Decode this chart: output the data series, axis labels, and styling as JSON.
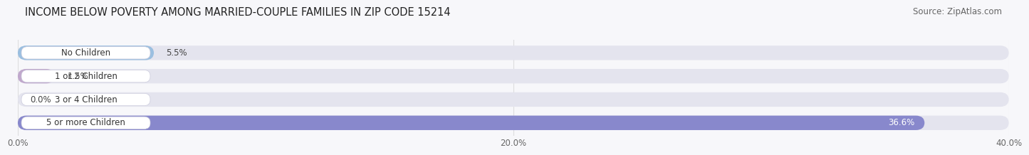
{
  "title": "INCOME BELOW POVERTY AMONG MARRIED-COUPLE FAMILIES IN ZIP CODE 15214",
  "source": "Source: ZipAtlas.com",
  "categories": [
    "No Children",
    "1 or 2 Children",
    "3 or 4 Children",
    "5 or more Children"
  ],
  "values": [
    5.5,
    1.5,
    0.0,
    36.6
  ],
  "bar_colors": [
    "#9bbfe0",
    "#c0a8cc",
    "#7ecfc8",
    "#8888cc"
  ],
  "bar_bg_color": "#e4e4ee",
  "xlim": [
    0,
    40
  ],
  "xtick_labels": [
    "0.0%",
    "20.0%",
    "40.0%"
  ],
  "label_fontsize": 8.5,
  "title_fontsize": 10.5,
  "source_fontsize": 8.5,
  "background_color": "#f7f7fa",
  "bar_height": 0.62,
  "label_color": "#333333",
  "value_label_color": "#444444",
  "value_inside_color": "#ffffff",
  "grid_color": "#dddddf",
  "label_box_color": "#ffffff",
  "label_box_edge_color": "#ccccdd"
}
